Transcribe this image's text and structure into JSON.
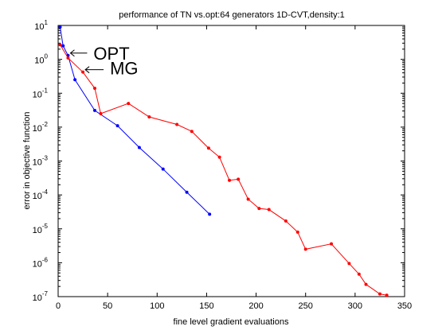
{
  "chart_data": {
    "type": "line",
    "title": "performance of TN vs.opt:64 generators 1D-CVT,density:1",
    "xlabel": "fine level gradient evaluations",
    "ylabel": "error in objective function",
    "xlim": [
      0,
      350
    ],
    "ylim": [
      1e-07,
      10
    ],
    "yscale": "log",
    "grid": false,
    "x_ticks": [
      {
        "value": 0,
        "label": "0"
      },
      {
        "value": 50,
        "label": "50"
      },
      {
        "value": 100,
        "label": "100"
      },
      {
        "value": 150,
        "label": "150"
      },
      {
        "value": 200,
        "label": "200"
      },
      {
        "value": 250,
        "label": "250"
      },
      {
        "value": 300,
        "label": "300"
      },
      {
        "value": 350,
        "label": "350"
      }
    ],
    "y_ticks": [
      {
        "exp": 1,
        "base": "10",
        "sup": "1"
      },
      {
        "exp": 0,
        "base": "10",
        "sup": "0"
      },
      {
        "exp": -1,
        "base": "10",
        "sup": "-1"
      },
      {
        "exp": -2,
        "base": "10",
        "sup": "-2"
      },
      {
        "exp": -3,
        "base": "10",
        "sup": "-3"
      },
      {
        "exp": -4,
        "base": "10",
        "sup": "-4"
      },
      {
        "exp": -5,
        "base": "10",
        "sup": "-5"
      },
      {
        "exp": -6,
        "base": "10",
        "sup": "-6"
      },
      {
        "exp": -7,
        "base": "10",
        "sup": "-7"
      }
    ],
    "series": [
      {
        "color": "#0000ff",
        "marker": "dot",
        "x": [
          2,
          5,
          10,
          17,
          37,
          60,
          82,
          106,
          130,
          153
        ],
        "y": [
          9,
          2.5,
          1.3,
          0.25,
          0.031,
          0.011,
          0.0025,
          0.00058,
          0.00012,
          2.7e-05
        ]
      },
      {
        "color": "#ff0000",
        "marker": "dot",
        "x": [
          2,
          10,
          25,
          37,
          43,
          71,
          92,
          120,
          135,
          152,
          163,
          173,
          182,
          192,
          203,
          213,
          230,
          242,
          250,
          276,
          294,
          304,
          311,
          325,
          332
        ],
        "y": [
          2.7,
          1.1,
          0.42,
          0.14,
          0.025,
          0.05,
          0.02,
          0.012,
          0.0075,
          0.0024,
          0.0013,
          0.00027,
          0.00029,
          7.5e-05,
          4e-05,
          3.7e-05,
          1.7e-05,
          8e-06,
          2.5e-06,
          3.6e-06,
          9.5e-07,
          4.6e-07,
          2.3e-07,
          1.2e-07,
          1.1e-07
        ]
      }
    ],
    "annotations": [
      {
        "text": "OPT",
        "points_to": {
          "x": 10,
          "y": 1.3
        }
      },
      {
        "text": "MG",
        "points_to": {
          "x": 25,
          "y": 0.42
        }
      }
    ]
  }
}
